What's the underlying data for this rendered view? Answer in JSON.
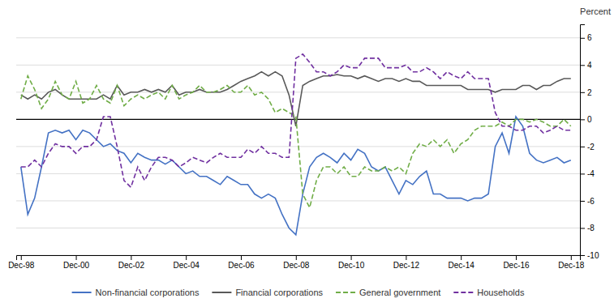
{
  "chart_data": {
    "type": "line",
    "ylabel": "Percent",
    "xlim": [
      1998.75,
      2019.25
    ],
    "xticks": [
      {
        "value": 1998.92,
        "label": "Dec-98"
      },
      {
        "value": 2000.92,
        "label": "Dec-00"
      },
      {
        "value": 2002.92,
        "label": "Dec-02"
      },
      {
        "value": 2004.92,
        "label": "Dec-04"
      },
      {
        "value": 2006.92,
        "label": "Dec-06"
      },
      {
        "value": 2008.92,
        "label": "Dec-08"
      },
      {
        "value": 2010.92,
        "label": "Dec-10"
      },
      {
        "value": 2012.92,
        "label": "Dec-12"
      },
      {
        "value": 2014.92,
        "label": "Dec-14"
      },
      {
        "value": 2016.92,
        "label": "Dec-16"
      },
      {
        "value": 2018.92,
        "label": "Dec-18"
      }
    ],
    "ylim": [
      -10,
      7
    ],
    "yticks": [
      -10,
      -8,
      -6,
      -4,
      -2,
      0,
      2,
      4,
      6
    ],
    "grid": "y",
    "legend": "bottom",
    "x": [
      1998.92,
      1999.17,
      1999.42,
      1999.67,
      1999.92,
      2000.17,
      2000.42,
      2000.67,
      2000.92,
      2001.17,
      2001.42,
      2001.67,
      2001.92,
      2002.17,
      2002.42,
      2002.67,
      2002.92,
      2003.17,
      2003.42,
      2003.67,
      2003.92,
      2004.17,
      2004.42,
      2004.67,
      2004.92,
      2005.17,
      2005.42,
      2005.67,
      2005.92,
      2006.17,
      2006.42,
      2006.67,
      2006.92,
      2007.17,
      2007.42,
      2007.67,
      2007.92,
      2008.17,
      2008.42,
      2008.67,
      2008.92,
      2009.17,
      2009.42,
      2009.67,
      2009.92,
      2010.17,
      2010.42,
      2010.67,
      2010.92,
      2011.17,
      2011.42,
      2011.67,
      2011.92,
      2012.17,
      2012.42,
      2012.67,
      2012.92,
      2013.17,
      2013.42,
      2013.67,
      2013.92,
      2014.17,
      2014.42,
      2014.67,
      2014.92,
      2015.17,
      2015.42,
      2015.67,
      2015.92,
      2016.17,
      2016.42,
      2016.67,
      2016.92,
      2017.17,
      2017.42,
      2017.67,
      2017.92,
      2018.17,
      2018.42,
      2018.67,
      2018.92
    ],
    "series": [
      {
        "name": "Non-financial corporations",
        "color": "#4472c4",
        "line_style": "solid",
        "values": [
          -3.5,
          -7.0,
          -5.8,
          -3.5,
          -1.0,
          -0.8,
          -1.0,
          -0.8,
          -1.5,
          -0.8,
          -1.0,
          -1.5,
          -2.0,
          -1.8,
          -2.3,
          -2.5,
          -3.2,
          -2.5,
          -2.8,
          -3.0,
          -3.0,
          -3.3,
          -3.0,
          -3.5,
          -4.0,
          -3.8,
          -4.2,
          -4.2,
          -4.5,
          -4.8,
          -4.2,
          -4.5,
          -4.8,
          -4.8,
          -5.5,
          -5.8,
          -5.5,
          -5.8,
          -7.0,
          -8.0,
          -8.5,
          -5.5,
          -3.5,
          -2.8,
          -2.5,
          -2.8,
          -3.2,
          -2.5,
          -3.0,
          -2.2,
          -2.5,
          -3.5,
          -3.8,
          -3.5,
          -4.5,
          -5.5,
          -4.5,
          -4.8,
          -4.2,
          -3.8,
          -5.5,
          -5.5,
          -5.8,
          -5.8,
          -5.8,
          -6.0,
          -5.8,
          -5.8,
          -5.5,
          -2.0,
          -1.0,
          -2.5,
          0.2,
          -0.5,
          -2.5,
          -3.0,
          -3.2,
          -3.0,
          -2.8,
          -3.2,
          -3.0
        ]
      },
      {
        "name": "Financial corporations",
        "color": "#595959",
        "line_style": "solid",
        "values": [
          1.8,
          1.5,
          1.8,
          1.5,
          2.0,
          2.2,
          1.8,
          1.5,
          1.5,
          1.5,
          1.5,
          1.5,
          1.8,
          1.5,
          2.5,
          1.8,
          2.0,
          2.0,
          2.2,
          2.0,
          2.2,
          2.0,
          2.5,
          1.8,
          2.0,
          2.0,
          2.2,
          2.0,
          2.0,
          2.0,
          2.2,
          2.5,
          2.8,
          3.0,
          3.2,
          3.5,
          3.2,
          3.5,
          3.2,
          1.8,
          -0.5,
          2.5,
          2.8,
          3.0,
          3.2,
          3.2,
          3.3,
          3.2,
          3.2,
          3.0,
          3.2,
          3.0,
          2.8,
          3.0,
          3.0,
          2.8,
          3.0,
          2.8,
          2.8,
          2.5,
          2.5,
          2.5,
          2.5,
          2.5,
          2.5,
          2.2,
          2.2,
          2.2,
          2.2,
          2.0,
          2.2,
          2.2,
          2.2,
          2.5,
          2.5,
          2.2,
          2.5,
          2.5,
          2.8,
          3.0,
          3.0
        ]
      },
      {
        "name": "General government",
        "color": "#70ad47",
        "line_style": "dashed",
        "values": [
          1.5,
          3.2,
          2.2,
          0.8,
          1.5,
          2.8,
          1.8,
          1.5,
          2.8,
          1.2,
          1.5,
          2.5,
          1.5,
          1.2,
          2.5,
          1.0,
          1.5,
          1.8,
          1.5,
          1.8,
          2.0,
          1.5,
          2.5,
          1.5,
          1.8,
          2.0,
          2.5,
          2.0,
          2.0,
          2.2,
          2.5,
          2.0,
          2.0,
          2.5,
          1.8,
          2.0,
          1.5,
          0.5,
          0.8,
          0.5,
          0.2,
          -5.5,
          -6.5,
          -4.5,
          -3.5,
          -3.5,
          -4.0,
          -3.5,
          -4.2,
          -4.2,
          -3.5,
          -3.8,
          -3.8,
          -3.5,
          -3.8,
          -3.5,
          -4.0,
          -2.5,
          -1.8,
          -2.0,
          -1.5,
          -2.0,
          -1.5,
          -2.5,
          -1.8,
          -1.5,
          -0.8,
          -0.5,
          -0.5,
          -0.5,
          -0.2,
          -0.5,
          0.0,
          0.0,
          -0.2,
          0.0,
          -0.2,
          -0.5,
          -0.5,
          0.0,
          -0.5
        ]
      },
      {
        "name": "Households",
        "color": "#7030a0",
        "line_style": "dashed",
        "values": [
          -3.5,
          -3.5,
          -3.0,
          -3.5,
          -2.5,
          -1.8,
          -2.0,
          -2.0,
          -2.5,
          -2.0,
          -2.0,
          -1.5,
          0.2,
          0.2,
          -2.0,
          -4.5,
          -5.0,
          -3.5,
          -4.5,
          -3.5,
          -2.8,
          -2.8,
          -3.0,
          -3.5,
          -3.2,
          -2.8,
          -3.0,
          -3.2,
          -2.8,
          -2.5,
          -2.8,
          -2.8,
          -2.8,
          -2.2,
          -2.5,
          -2.0,
          -2.5,
          -2.5,
          -2.8,
          -2.8,
          4.5,
          4.8,
          4.2,
          3.5,
          3.5,
          3.2,
          3.5,
          4.0,
          3.8,
          3.8,
          4.5,
          4.5,
          4.5,
          3.8,
          3.8,
          3.8,
          4.0,
          3.5,
          3.5,
          3.8,
          3.5,
          3.0,
          3.5,
          3.2,
          3.0,
          3.5,
          3.0,
          3.0,
          3.0,
          0.5,
          -0.5,
          -0.5,
          -0.8,
          -0.8,
          -0.5,
          -0.5,
          -1.0,
          -0.8,
          -0.5,
          -0.8,
          -0.8
        ]
      }
    ]
  }
}
